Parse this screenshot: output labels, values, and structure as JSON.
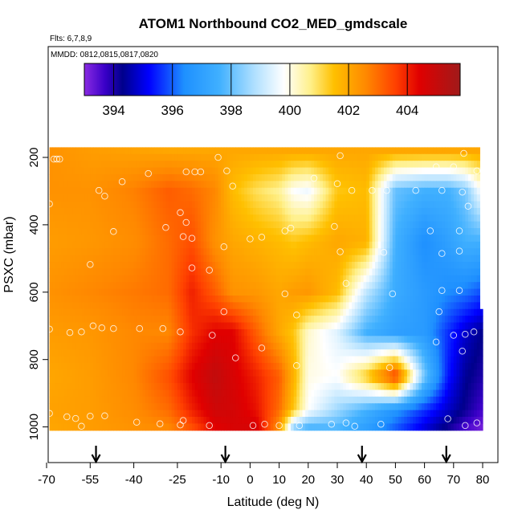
{
  "chart_data": {
    "type": "heatmap",
    "title": "ATOM1 Northbound CO2_MED_gmdscale",
    "flights_note": "Flts: 6,7,8,9",
    "dates_note": "MMDD: 0812,0815,0817,0820",
    "xlabel": "Latitude (deg N)",
    "ylabel": "PSXC (mbar)",
    "xlim": [
      -70,
      80
    ],
    "ylim": [
      1000,
      0
    ],
    "x_ticks": [
      -70,
      -55,
      -40,
      -25,
      -10,
      0,
      10,
      20,
      30,
      40,
      50,
      60,
      70,
      80
    ],
    "y_ticks": [
      200,
      400,
      600,
      800,
      1000
    ],
    "colorbar": {
      "range": [
        393,
        405.8
      ],
      "ticks": [
        394,
        396,
        398,
        400,
        402,
        404
      ],
      "stops": [
        {
          "v": 393.0,
          "c": "#8a2be2"
        },
        {
          "v": 393.7,
          "c": "#3a00c8"
        },
        {
          "v": 394.3,
          "c": "#00008b"
        },
        {
          "v": 395.2,
          "c": "#0000ff"
        },
        {
          "v": 396.4,
          "c": "#1e90ff"
        },
        {
          "v": 397.6,
          "c": "#40b0ff"
        },
        {
          "v": 398.8,
          "c": "#b0e0ff"
        },
        {
          "v": 399.8,
          "c": "#ffffff"
        },
        {
          "v": 400.7,
          "c": "#fff08a"
        },
        {
          "v": 401.5,
          "c": "#ffc000"
        },
        {
          "v": 402.6,
          "c": "#ff8800"
        },
        {
          "v": 403.6,
          "c": "#ff4000"
        },
        {
          "v": 404.4,
          "c": "#e00000"
        },
        {
          "v": 405.8,
          "c": "#a01a1a"
        }
      ]
    },
    "profiles": {
      "lats": [
        -69,
        -55,
        -40,
        -28,
        -20,
        -12,
        -6,
        2,
        10,
        15,
        20,
        30,
        40,
        50,
        60,
        68,
        74,
        80
      ],
      "pressures": [
        180,
        300,
        450,
        600,
        720,
        850,
        950,
        1000
      ],
      "values": [
        [
          402.4,
          402.2,
          402.1,
          402.0,
          402.0,
          402.0,
          402.0,
          402.0,
          402.0,
          402.0,
          402.0,
          402.0,
          402.0,
          402.0,
          402.0,
          402.0,
          402.0,
          402.0
        ],
        [
          402.4,
          402.4,
          402.7,
          403.2,
          403.0,
          402.6,
          401.6,
          401.0,
          400.6,
          399.8,
          399.6,
          401.4,
          401.6,
          398.0,
          397.6,
          397.6,
          398.2,
          400.0
        ],
        [
          402.2,
          402.3,
          402.5,
          403.0,
          403.4,
          402.4,
          402.0,
          401.8,
          401.6,
          401.4,
          401.6,
          402.0,
          401.8,
          397.6,
          396.4,
          397.0,
          397.6,
          397.6
        ],
        [
          402.4,
          402.6,
          402.8,
          403.0,
          404.0,
          403.2,
          402.4,
          402.3,
          402.0,
          402.2,
          402.3,
          401.6,
          399.0,
          397.4,
          396.8,
          396.4,
          396.2,
          395.8
        ],
        [
          402.2,
          402.3,
          402.6,
          402.6,
          403.8,
          404.4,
          404.4,
          403.2,
          402.0,
          401.4,
          400.2,
          399.4,
          397.6,
          397.0,
          396.8,
          395.6,
          394.8,
          394.3
        ],
        [
          402.0,
          402.2,
          402.6,
          403.4,
          404.4,
          405.1,
          404.6,
          404.0,
          403.2,
          401.8,
          400.0,
          399.8,
          401.4,
          403.8,
          398.2,
          395.4,
          394.4,
          394.0
        ],
        [
          402.1,
          402.2,
          402.5,
          403.0,
          404.0,
          404.8,
          404.7,
          404.2,
          403.0,
          401.4,
          399.8,
          398.6,
          397.6,
          396.6,
          395.6,
          394.8,
          394.2,
          393.6
        ],
        [
          402.0,
          402.2,
          402.4,
          402.6,
          403.4,
          404.4,
          404.6,
          404.6,
          402.4,
          398.6,
          397.8,
          397.8,
          397.0,
          396.0,
          395.0,
          394.2,
          393.6,
          393.2
        ]
      ]
    },
    "arrows_lat": [
      -53,
      -8.5,
      38.5,
      67.5
    ],
    "observations": [
      [
        -67.5,
        205
      ],
      [
        -66.5,
        205
      ],
      [
        -65.5,
        205
      ],
      [
        -11,
        200
      ],
      [
        31,
        195
      ],
      [
        73.5,
        188
      ],
      [
        64,
        228
      ],
      [
        70,
        228
      ],
      [
        78,
        240
      ],
      [
        -35,
        248
      ],
      [
        -22,
        243
      ],
      [
        -19,
        243
      ],
      [
        -17,
        243
      ],
      [
        -8,
        240
      ],
      [
        -44,
        272
      ],
      [
        -52,
        298
      ],
      [
        -6,
        285
      ],
      [
        -50,
        315
      ],
      [
        22,
        262
      ],
      [
        30,
        278
      ],
      [
        35,
        298
      ],
      [
        42,
        298
      ],
      [
        47,
        298
      ],
      [
        57,
        298
      ],
      [
        66,
        298
      ],
      [
        73,
        303
      ],
      [
        75,
        345
      ],
      [
        -69,
        338
      ],
      [
        -24,
        364
      ],
      [
        -22,
        393
      ],
      [
        14,
        410
      ],
      [
        29,
        405
      ],
      [
        62,
        418
      ],
      [
        72,
        418
      ],
      [
        -47,
        420
      ],
      [
        -29,
        408
      ],
      [
        -23,
        435
      ],
      [
        -20,
        440
      ],
      [
        -9,
        465
      ],
      [
        0,
        442
      ],
      [
        4,
        437
      ],
      [
        12,
        418
      ],
      [
        -55,
        518
      ],
      [
        31,
        480
      ],
      [
        46,
        482
      ],
      [
        66,
        485
      ],
      [
        72,
        478
      ],
      [
        -20,
        528
      ],
      [
        -14,
        535
      ],
      [
        33,
        574
      ],
      [
        12,
        605
      ],
      [
        49,
        605
      ],
      [
        66,
        595
      ],
      [
        72,
        595
      ],
      [
        -9,
        658
      ],
      [
        16,
        668
      ],
      [
        65,
        658
      ],
      [
        -69,
        710
      ],
      [
        -62,
        720
      ],
      [
        -58,
        718
      ],
      [
        -54,
        700
      ],
      [
        -51,
        706
      ],
      [
        -47,
        708
      ],
      [
        -38,
        708
      ],
      [
        -30,
        708
      ],
      [
        -24,
        718
      ],
      [
        -13,
        728
      ],
      [
        70,
        728
      ],
      [
        74,
        725
      ],
      [
        77,
        718
      ],
      [
        64,
        748
      ],
      [
        4,
        766
      ],
      [
        73,
        775
      ],
      [
        -5,
        795
      ],
      [
        16,
        818
      ],
      [
        48,
        824
      ],
      [
        -69,
        960
      ],
      [
        -63,
        970
      ],
      [
        -60,
        975
      ],
      [
        -55,
        968
      ],
      [
        -50,
        967
      ],
      [
        -39,
        986
      ],
      [
        -31,
        991
      ],
      [
        -23,
        981
      ],
      [
        -14,
        996
      ],
      [
        1,
        996
      ],
      [
        5,
        992
      ],
      [
        10,
        996
      ],
      [
        17,
        996
      ],
      [
        28,
        992
      ],
      [
        33,
        988
      ],
      [
        45,
        992
      ],
      [
        68,
        976
      ],
      [
        74,
        996
      ],
      [
        78,
        988
      ],
      [
        -58,
        998
      ],
      [
        -24,
        994
      ],
      [
        36,
        998
      ]
    ]
  }
}
